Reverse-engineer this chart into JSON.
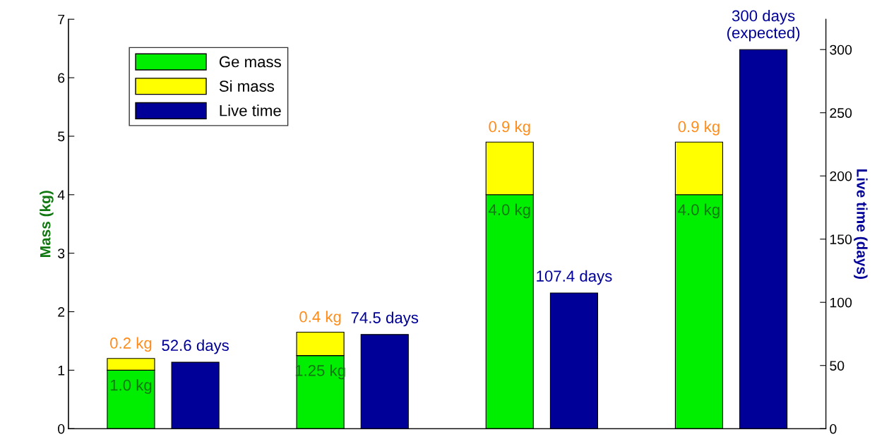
{
  "chart_data": {
    "type": "bar",
    "stacked": true,
    "categories": [
      null,
      null,
      null,
      null
    ],
    "ylabel": "Mass (kg)",
    "y2label": "Live time (days)",
    "ylim": [
      0,
      7
    ],
    "yticks": [
      0,
      1,
      2,
      3,
      4,
      5,
      6,
      7
    ],
    "y2lim": [
      0,
      324
    ],
    "y2ticks": [
      0,
      50,
      100,
      150,
      200,
      250,
      300
    ],
    "legend": "top left",
    "tick_labels": "y",
    "series": [
      {
        "name": "Ge mass",
        "color": "#00ee00",
        "values": [
          1.0,
          1.25,
          4.0,
          4.0
        ],
        "value_labels": [
          "1.0 kg",
          "1.25 kg",
          "4.0 kg",
          "4.0 kg"
        ]
      },
      {
        "name": "Si mass",
        "color": "#ffff00",
        "values": [
          0.2,
          0.4,
          0.9,
          0.9
        ],
        "value_labels": [
          "0.2 kg",
          "0.4 kg",
          "0.9 kg",
          "0.9 kg"
        ]
      },
      {
        "name": "Live time",
        "color": "#000099",
        "axis": "y2",
        "values": [
          52.6,
          74.5,
          107.4,
          300
        ],
        "value_labels": [
          "52.6 days",
          "74.5 days",
          "107.4 days",
          "300 days\n(expected)"
        ]
      }
    ]
  }
}
